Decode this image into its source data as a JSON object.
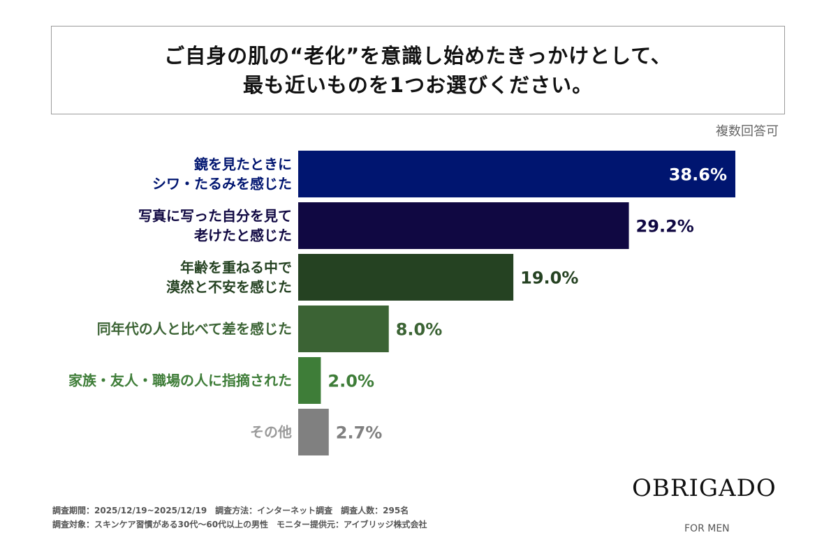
{
  "header": {
    "title_lines": [
      "ご自身の肌の“老化”を意識し始めたきっかけとして、",
      "最も近いものを1つお選びください。"
    ],
    "note": "複数回答可"
  },
  "chart_data": {
    "type": "bar",
    "orientation": "horizontal",
    "categories": [
      [
        "鏡を見たときに",
        "シワ・たるみを感じた"
      ],
      [
        "写真に写った自分を見て",
        "老けたと感じた"
      ],
      [
        "年齢を重ねる中で",
        "漠然と不安を感じた"
      ],
      [
        "同年代の人と比べて差を感じた"
      ],
      [
        "家族・友人・職場の人に指摘された"
      ],
      [
        "その他"
      ]
    ],
    "values": [
      38.6,
      29.2,
      19.0,
      8.0,
      2.0,
      2.7
    ],
    "data_labels": [
      "38.6%",
      "29.2%",
      "19.0%",
      "8.0%",
      "2.0%",
      "2.7%"
    ],
    "colors": [
      "#001570",
      "#100842",
      "#254222",
      "#3b6334",
      "#3e7d38",
      "#808080"
    ],
    "label_colors": [
      "#001570",
      "#100842",
      "#254222",
      "#3b6334",
      "#3e7d38",
      "#9a9a9a"
    ],
    "value_label_colors": [
      "#ffffff",
      "#100842",
      "#254222",
      "#3b6334",
      "#3e7d38",
      "#808080"
    ],
    "grid": false
  },
  "footer": {
    "line1": "調査期間：2025/12/19~2025/12/19　調査方法：インターネット調査　調査人数：295名",
    "line2": "調査対象：スキンケア習慣がある30代～60代以上の男性　モニター提供元：アイブリッジ株式会社"
  },
  "brand": {
    "name": "OBRIGADO",
    "tagline": "FOR MEN"
  }
}
